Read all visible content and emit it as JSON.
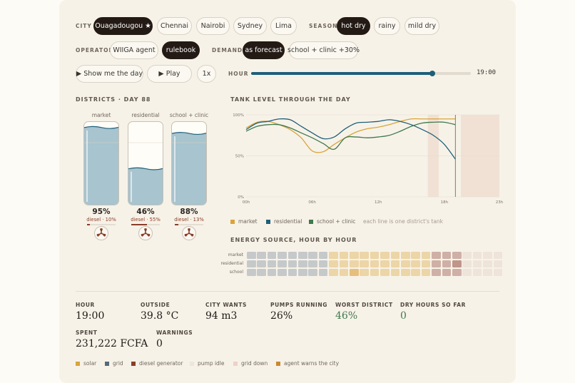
{
  "controls": {
    "city_label": "CITY",
    "cities": [
      "Ouagadougou ★",
      "Chennai",
      "Nairobi",
      "Sydney",
      "Lima"
    ],
    "season_label": "SEASON",
    "seasons": [
      "hot dry",
      "rainy",
      "mild dry"
    ],
    "operator_label": "OPERATOR",
    "operators": [
      "WIIGA agent",
      "rulebook"
    ],
    "demand_label": "DEMAND",
    "demands": [
      "as forecast",
      "school + clinic +30%"
    ],
    "show_day": "▶ Show me the day",
    "play": "▶ Play",
    "speed": "1x",
    "hour_label": "HOUR",
    "hour_value": "19:00",
    "hour_fraction": 0.826
  },
  "districts": {
    "title": "DISTRICTS · DAY 88",
    "items": [
      {
        "name": "market",
        "percent": "95%",
        "level": 0.95,
        "source": "diesel · 10%",
        "source_share": 0.1
      },
      {
        "name": "residential",
        "percent": "46%",
        "level": 0.46,
        "source": "diesel · 55%",
        "source_share": 0.55
      },
      {
        "name": "school + clinic",
        "percent": "88%",
        "level": 0.88,
        "source": "diesel · 13%",
        "source_share": 0.13
      }
    ]
  },
  "chart_data": {
    "type": "line",
    "title": "TANK LEVEL THROUGH THE DAY",
    "x_ticks": [
      "00h",
      "06h",
      "12h",
      "18h",
      "23h"
    ],
    "y_ticks": [
      "100%",
      "50%",
      "0%"
    ],
    "ylim": [
      0,
      100
    ],
    "xlim": [
      0,
      23
    ],
    "x": [
      0,
      1,
      2,
      3,
      4,
      5,
      6,
      7,
      8,
      9,
      10,
      11,
      12,
      13,
      14,
      15,
      16,
      17,
      18,
      19
    ],
    "series": [
      {
        "name": "market",
        "color": "#d9a53a",
        "values": [
          84,
          91,
          92,
          88,
          82,
          72,
          56,
          55,
          64,
          72,
          79,
          83,
          85,
          88,
          92,
          95,
          95,
          95,
          95,
          95
        ]
      },
      {
        "name": "residential",
        "color": "#1e5f7a",
        "values": [
          82,
          90,
          92,
          95,
          94,
          86,
          78,
          71,
          73,
          83,
          90,
          91,
          92,
          94,
          92,
          88,
          82,
          75,
          64,
          46
        ]
      },
      {
        "name": "school + clinic",
        "color": "#3f7a4e",
        "values": [
          80,
          86,
          88,
          88,
          84,
          78,
          72,
          65,
          58,
          72,
          73,
          72,
          73,
          75,
          80,
          86,
          90,
          91,
          91,
          88
        ]
      }
    ],
    "shaded_ranges": [
      [
        16.5,
        17.5
      ],
      [
        19.5,
        30
      ]
    ],
    "current_hour": 19,
    "legend_note": "each line is one district's tank"
  },
  "energy": {
    "title": "ENERGY SOURCE, HOUR BY HOUR",
    "rows": [
      {
        "label": "market",
        "cells": [
          "g",
          "g",
          "g",
          "g",
          "g",
          "g",
          "g",
          "g",
          "s",
          "s",
          "s",
          "s",
          "s",
          "s",
          "s",
          "s",
          "s",
          "s",
          "d",
          "d",
          "d",
          "i",
          "i",
          "i",
          "i"
        ]
      },
      {
        "label": "residential",
        "cells": [
          "g",
          "g",
          "g",
          "g",
          "g",
          "g",
          "g",
          "g",
          "s",
          "s",
          "s",
          "s",
          "s",
          "s",
          "s",
          "s",
          "s",
          "s",
          "d",
          "d",
          "D",
          "i",
          "i",
          "i",
          "i"
        ]
      },
      {
        "label": "school",
        "cells": [
          "g",
          "g",
          "g",
          "g",
          "g",
          "g",
          "g",
          "g",
          "s",
          "s",
          "S",
          "s",
          "s",
          "s",
          "s",
          "s",
          "s",
          "s",
          "d",
          "d",
          "d",
          "i",
          "i",
          "i",
          "i"
        ]
      }
    ],
    "colors": {
      "g": "#c6c9ca",
      "s": "#ecd5a6",
      "S": "#e6c07a",
      "d": "#cfb0a6",
      "D": "#c1958a",
      "i": "#efe4da"
    }
  },
  "stats": {
    "hour": {
      "label": "HOUR",
      "value": "19:00"
    },
    "outside": {
      "label": "OUTSIDE",
      "value": "39.8 °C"
    },
    "city_wants": {
      "label": "CITY WANTS",
      "value": "94 m3"
    },
    "pumps": {
      "label": "PUMPS RUNNING",
      "value": "26%"
    },
    "worst": {
      "label": "WORST DISTRICT",
      "value": "46%"
    },
    "dry": {
      "label": "DRY HOURS SO FAR",
      "value": "0"
    },
    "spent": {
      "label": "SPENT",
      "value": "231,222 FCFA"
    },
    "warnings": {
      "label": "WARNINGS",
      "value": "0"
    }
  },
  "legend": [
    {
      "name": "solar",
      "color": "#d9a53a"
    },
    {
      "name": "grid",
      "color": "#55697a"
    },
    {
      "name": "diesel generator",
      "color": "#8a3e28"
    },
    {
      "name": "pump idle",
      "color": "#ece6dc"
    },
    {
      "name": "grid down",
      "color": "#ecd2c8"
    },
    {
      "name": "agent warns the city",
      "color": "#c98a2e"
    }
  ]
}
